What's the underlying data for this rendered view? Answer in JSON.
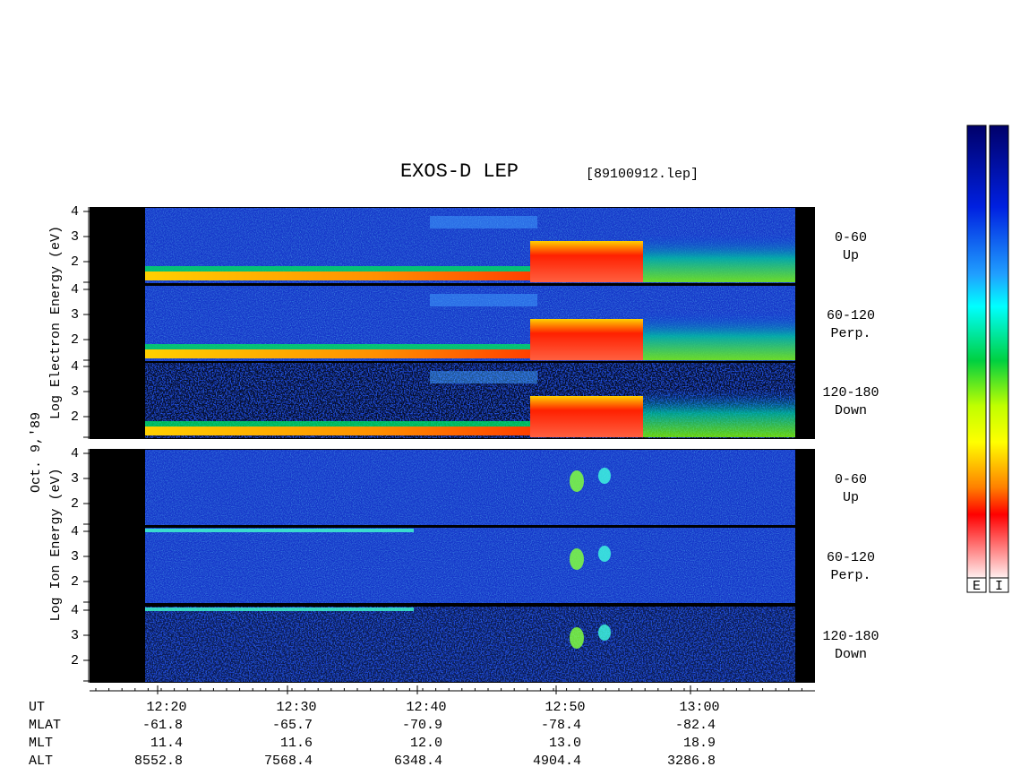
{
  "header": {
    "title": "EXOS-D LEP",
    "file": "[89100912.lep]"
  },
  "date": "Oct. 9,'89",
  "electron": {
    "axis_label": "Log  Electron  Energy (eV)",
    "panels": [
      {
        "ticks": [
          "4",
          "3",
          "2"
        ],
        "range": "0-60",
        "direction": "Up"
      },
      {
        "ticks": [
          "4",
          "3",
          "2"
        ],
        "range": "60-120",
        "direction": "Perp."
      },
      {
        "ticks": [
          "4",
          "3",
          "2"
        ],
        "range": "120-180",
        "direction": "Down"
      }
    ]
  },
  "ion": {
    "axis_label": "Log  Ion  Energy (eV)",
    "panels": [
      {
        "ticks": [
          "4",
          "3",
          "2"
        ],
        "range": "0-60",
        "direction": "Up"
      },
      {
        "ticks": [
          "4",
          "3",
          "2"
        ],
        "range": "60-120",
        "direction": "Perp."
      },
      {
        "ticks": [
          "4",
          "3",
          "2"
        ],
        "range": "120-180",
        "direction": "Down"
      }
    ]
  },
  "time_axis": {
    "labels": [
      "12:20",
      "12:30",
      "12:40",
      "12:50",
      "13:00"
    ]
  },
  "ephemeris": {
    "rows": [
      {
        "name": "UT"
      },
      {
        "name": "MLAT",
        "values": [
          "-61.8",
          "-65.7",
          "-70.9",
          "-78.4",
          "-82.4"
        ]
      },
      {
        "name": "MLT",
        "values": [
          "11.4",
          "11.6",
          "12.0",
          "13.0",
          "18.9"
        ]
      },
      {
        "name": "ALT",
        "values": [
          "8552.8",
          "7568.4",
          "6348.4",
          "4904.4",
          "3286.8"
        ]
      }
    ]
  },
  "colorbar": {
    "labels": [
      "E",
      "I"
    ]
  }
}
